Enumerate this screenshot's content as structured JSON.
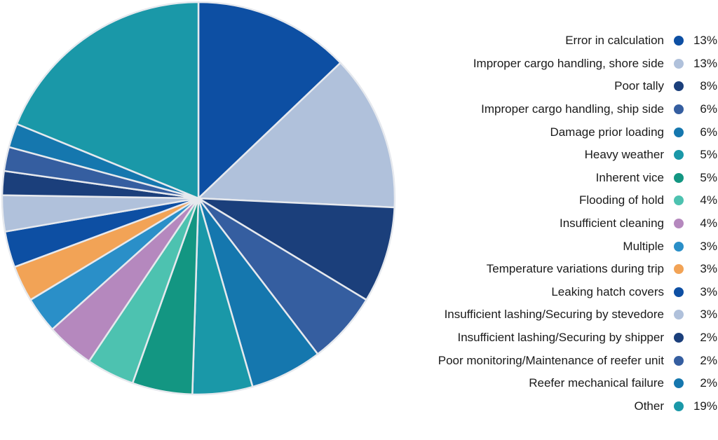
{
  "chart_data": {
    "type": "pie",
    "title": "",
    "legend_position": "right",
    "slices": [
      {
        "label": "Error in calculation",
        "value": 13,
        "value_label": "13%",
        "color": "#0d4fa3"
      },
      {
        "label": "Improper cargo handling, shore side",
        "value": 13,
        "value_label": "13%",
        "color": "#b0c1db"
      },
      {
        "label": "Poor tally",
        "value": 8,
        "value_label": "8%",
        "color": "#1b3f7b"
      },
      {
        "label": "Improper cargo handling, ship side",
        "value": 6,
        "value_label": "6%",
        "color": "#355ea0"
      },
      {
        "label": "Damage prior loading",
        "value": 6,
        "value_label": "6%",
        "color": "#1577ae"
      },
      {
        "label": "Heavy weather",
        "value": 5,
        "value_label": "5%",
        "color": "#1a98a8"
      },
      {
        "label": "Inherent vice",
        "value": 5,
        "value_label": "5%",
        "color": "#139682"
      },
      {
        "label": "Flooding of hold",
        "value": 4,
        "value_label": "4%",
        "color": "#4dc2b0"
      },
      {
        "label": "Insufficient cleaning",
        "value": 4,
        "value_label": "4%",
        "color": "#b588be"
      },
      {
        "label": "Multiple",
        "value": 3,
        "value_label": "3%",
        "color": "#2a8fc8"
      },
      {
        "label": "Temperature variations during trip",
        "value": 3,
        "value_label": "3%",
        "color": "#f2a356"
      },
      {
        "label": "Leaking hatch covers",
        "value": 3,
        "value_label": "3%",
        "color": "#0d4fa3"
      },
      {
        "label": "Insufficient lashing/Securing by stevedore",
        "value": 3,
        "value_label": "3%",
        "color": "#b0c1db"
      },
      {
        "label": "Insufficient lashing/Securing by shipper",
        "value": 2,
        "value_label": "2%",
        "color": "#1b3f7b"
      },
      {
        "label": "Poor monitoring/Maintenance of reefer unit",
        "value": 2,
        "value_label": "2%",
        "color": "#355ea0"
      },
      {
        "label": "Reefer mechanical failure",
        "value": 2,
        "value_label": "2%",
        "color": "#1577ae"
      },
      {
        "label": "Other",
        "value": 19,
        "value_label": "19%",
        "color": "#1a98a8"
      }
    ]
  }
}
